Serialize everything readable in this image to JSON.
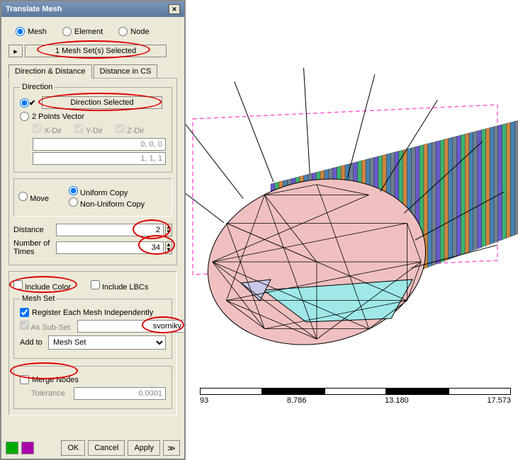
{
  "title": "Translate Mesh",
  "selectionMode": {
    "mesh": "Mesh",
    "element": "Element",
    "node": "Node"
  },
  "selectedLabel": "1 Mesh Set(s) Selected",
  "tabs": {
    "dirdist": "Direction & Distance",
    "distcs": "Distance in CS"
  },
  "direction": {
    "legend": "Direction",
    "selectedBtn": "Direction Selected",
    "twoPoints": "2 Points Vector",
    "xdir": "X-Dir",
    "ydir": "Y-Dir",
    "zdir": "Z-Dir",
    "val1": "0, 0, 0",
    "val2": "1, 1, 1"
  },
  "copyMode": {
    "move": "Move",
    "uniform": "Uniform Copy",
    "nonuniform": "Non-Uniform Copy"
  },
  "distance": {
    "label": "Distance",
    "value": "2"
  },
  "numtimes": {
    "label": "Number of Times",
    "value": "34"
  },
  "includeColor": "Include Color",
  "includeLBCs": "Include LBCs",
  "meshSet": {
    "legend": "Mesh Set",
    "register": "Register Each Mesh Independently",
    "assubset": "As Sub-Set",
    "subsetval": "svorniky",
    "addto": "Add to",
    "addtoval": "Mesh Set"
  },
  "merge": {
    "label": "Merge Nodes",
    "tol": "Tolerance",
    "tolval": "0.0001"
  },
  "buttons": {
    "ok": "OK",
    "cancel": "Cancel",
    "apply": "Apply"
  },
  "ruler": [
    "93",
    "8.786",
    "13.180",
    "17.573"
  ],
  "colors": {
    "pink": "#f0c0c0",
    "cyan": "#a0e8e8",
    "lav": "#c8c8e8",
    "meshLine": "#000",
    "dashPink": "#ff60d0",
    "cyl1": "#6a5acd",
    "cyl2": "#3cb371",
    "cyl3": "#cd853f",
    "cyl4": "#4682b4",
    "cyl5": "#708090"
  }
}
